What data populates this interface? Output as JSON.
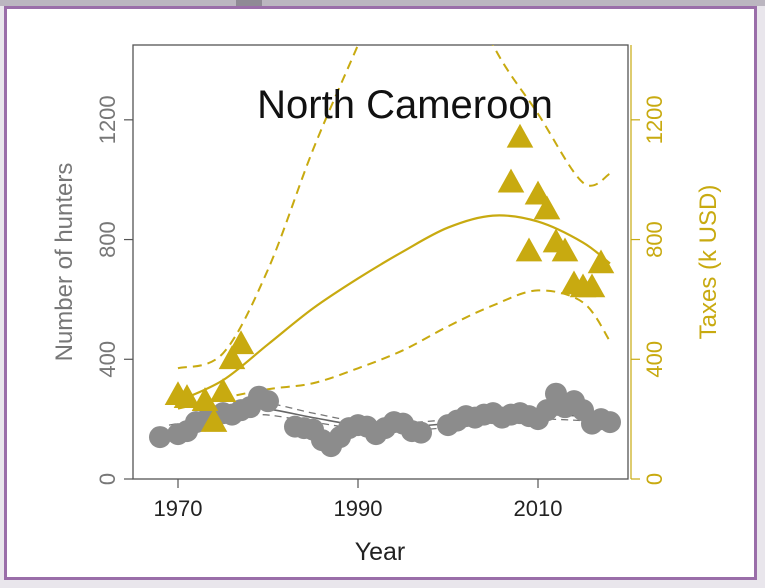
{
  "chart_data": {
    "type": "scatter",
    "title": "North Cameroon",
    "xlabel": "Year",
    "ylabel_left": "Number of hunters",
    "ylabel_right": "Taxes (k USD)",
    "xlim": [
      1965,
      2020
    ],
    "ylim_left": [
      0,
      1450
    ],
    "ylim_right": [
      0,
      1450
    ],
    "xticks": [
      "1970",
      "1990",
      "2010"
    ],
    "xtick_values": [
      1970,
      1990,
      2010
    ],
    "yticks_left": [
      "0",
      "400",
      "800",
      "1200"
    ],
    "ytick_left_values": [
      0,
      400,
      800,
      1200
    ],
    "yticks_right": [
      "0",
      "400",
      "800",
      "1200"
    ],
    "ytick_right_values": [
      0,
      400,
      800,
      1200
    ],
    "grid": false,
    "colors": {
      "hunters": "#8c8c8c",
      "taxes": "#c8aa10",
      "axis": "#555555",
      "frame": "#9a6ea9"
    },
    "series": [
      {
        "key": "hunters",
        "axis": "left",
        "marker": "circle",
        "points": [
          [
            1968,
            140
          ],
          [
            1970,
            150
          ],
          [
            1971,
            160
          ],
          [
            1972,
            190
          ],
          [
            1973,
            195
          ],
          [
            1974,
            205
          ],
          [
            1975,
            220
          ],
          [
            1976,
            215
          ],
          [
            1977,
            230
          ],
          [
            1978,
            240
          ],
          [
            1979,
            275
          ],
          [
            1980,
            260
          ],
          [
            1983,
            175
          ],
          [
            1984,
            170
          ],
          [
            1985,
            165
          ],
          [
            1986,
            130
          ],
          [
            1987,
            110
          ],
          [
            1988,
            140
          ],
          [
            1989,
            170
          ],
          [
            1990,
            180
          ],
          [
            1991,
            175
          ],
          [
            1992,
            150
          ],
          [
            1993,
            170
          ],
          [
            1994,
            190
          ],
          [
            1995,
            185
          ],
          [
            1996,
            160
          ],
          [
            1997,
            155
          ],
          [
            2000,
            180
          ],
          [
            2001,
            195
          ],
          [
            2002,
            210
          ],
          [
            2003,
            205
          ],
          [
            2004,
            215
          ],
          [
            2005,
            220
          ],
          [
            2006,
            205
          ],
          [
            2007,
            215
          ],
          [
            2008,
            220
          ],
          [
            2009,
            210
          ],
          [
            2010,
            200
          ],
          [
            2011,
            230
          ],
          [
            2012,
            285
          ],
          [
            2013,
            240
          ],
          [
            2014,
            260
          ],
          [
            2015,
            230
          ],
          [
            2016,
            185
          ],
          [
            2017,
            200
          ],
          [
            2018,
            190
          ]
        ]
      },
      {
        "key": "taxes",
        "axis": "right",
        "marker": "triangle",
        "points": [
          [
            1970,
            280
          ],
          [
            1971,
            270
          ],
          [
            1973,
            260
          ],
          [
            1974,
            190
          ],
          [
            1975,
            290
          ],
          [
            1976,
            400
          ],
          [
            1977,
            450
          ],
          [
            2007,
            990
          ],
          [
            2008,
            1140
          ],
          [
            2010,
            950
          ],
          [
            2011,
            900
          ],
          [
            2009,
            760
          ],
          [
            2012,
            790
          ],
          [
            2013,
            760
          ],
          [
            2014,
            650
          ],
          [
            2015,
            640
          ],
          [
            2016,
            640
          ],
          [
            2017,
            720
          ]
        ]
      }
    ],
    "hunters_fit": {
      "x": [
        1969,
        1975,
        1979,
        1985,
        1990,
        1995,
        2000,
        2005,
        2010,
        2015,
        2018
      ],
      "mid": [
        165,
        200,
        235,
        205,
        180,
        175,
        185,
        200,
        215,
        210,
        205
      ],
      "lower": [
        150,
        185,
        215,
        190,
        168,
        162,
        172,
        188,
        200,
        195,
        190
      ],
      "upper": [
        180,
        215,
        255,
        220,
        192,
        188,
        198,
        212,
        230,
        225,
        220
      ]
    },
    "taxes_fit": {
      "x": [
        1970,
        1975,
        1980,
        1985,
        1990,
        1995,
        2000,
        2005,
        2010,
        2015,
        2018
      ],
      "mid": [
        260,
        330,
        450,
        570,
        670,
        760,
        840,
        880,
        860,
        790,
        720
      ],
      "lower": [
        235,
        270,
        300,
        320,
        370,
        430,
        510,
        580,
        630,
        590,
        460
      ],
      "upper": [
        370,
        420,
        700,
        1100,
        1450,
        1800,
        1800,
        1450,
        1220,
        990,
        1020
      ]
    }
  }
}
